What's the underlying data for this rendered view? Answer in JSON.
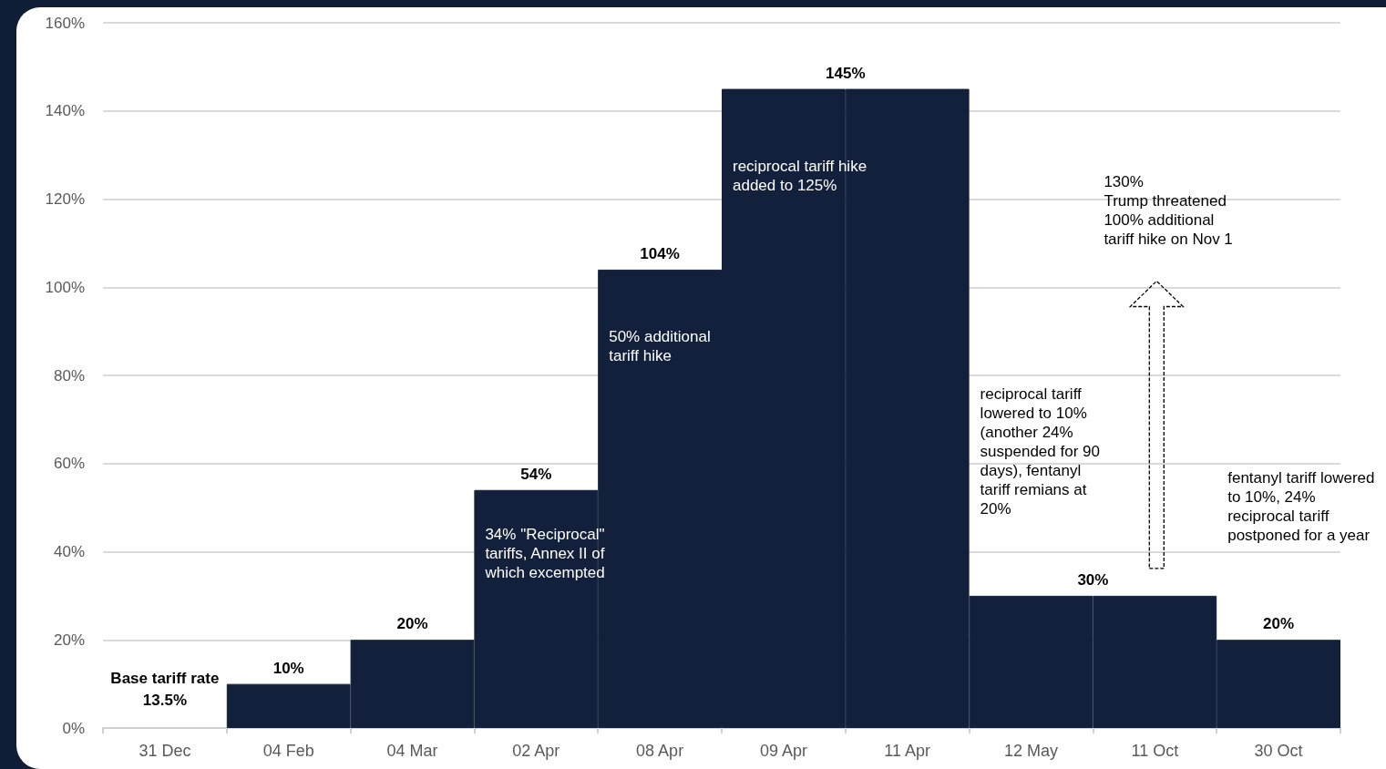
{
  "chart_data": {
    "type": "bar",
    "categories": [
      "31 Dec",
      "04 Feb",
      "04 Mar",
      "02 Apr",
      "08 Apr",
      "09 Apr",
      "11 Apr",
      "12 May",
      "11 Oct",
      "30 Oct"
    ],
    "values": [
      null,
      10,
      20,
      54,
      104,
      145,
      145,
      30,
      30,
      20
    ],
    "value_labels": [
      null,
      "10%",
      "20%",
      "54%",
      "104%",
      "145%",
      null,
      "30%",
      null,
      "20%"
    ],
    "color": "#13203b",
    "ylim": [
      0,
      160
    ],
    "yticks": [
      {
        "value": 0,
        "label": "0%"
      },
      {
        "value": 20,
        "label": "20%"
      },
      {
        "value": 40,
        "label": "40%"
      },
      {
        "value": 60,
        "label": "60%"
      },
      {
        "value": 80,
        "label": "80%"
      },
      {
        "value": 100,
        "label": "100%"
      },
      {
        "value": 120,
        "label": "120%"
      },
      {
        "value": 140,
        "label": "140%"
      },
      {
        "value": 160,
        "label": "160%"
      }
    ],
    "grid": "y",
    "annotations": [
      "Base tariff rate\n13.5%",
      "34% \"Reciprocal\"\ntariffs, Annex II of\nwhich excempted",
      "50% additional\ntariff hike",
      "reciprocal tariff hike\nadded to 125%",
      "reciprocal tariff\nlowered to 10%\n(another 24%\nsuspended for 90\ndays), fentanyl\ntariff remians at\n20%",
      "130%\nTrump threatened\n100% additional\ntariff hike on Nov 1",
      "fentanyl tariff lowered\nto 10%, 24%\nreciprocal tariff\npostponed for a year"
    ]
  }
}
